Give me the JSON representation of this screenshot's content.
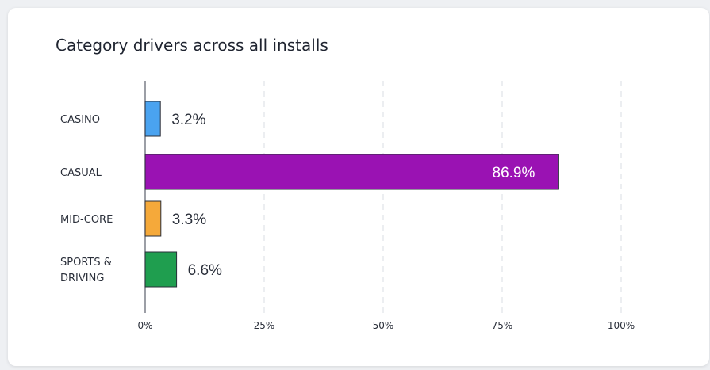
{
  "card": {
    "title": "Category drivers across all installs"
  },
  "chart_data": {
    "type": "bar",
    "orientation": "horizontal",
    "title": "Category drivers across all installs",
    "categories": [
      [
        "CASINO"
      ],
      [
        "CASUAL"
      ],
      [
        "MID-CORE"
      ],
      [
        "SPORTS &",
        "DRIVING"
      ]
    ],
    "values": [
      3.2,
      86.9,
      3.3,
      6.6
    ],
    "value_labels": [
      "3.2%",
      "86.9%",
      "3.3%",
      "6.6%"
    ],
    "colors": [
      "#4aa3f0",
      "#9a12b3",
      "#f5a93a",
      "#1f9e4f"
    ],
    "xlim": [
      0,
      100
    ],
    "xticks": [
      0,
      25,
      50,
      75,
      100
    ],
    "xtick_labels": [
      "0%",
      "25%",
      "50%",
      "75%",
      "100%"
    ],
    "xlabel": "",
    "ylabel": "",
    "grid": true,
    "legend": "none"
  }
}
